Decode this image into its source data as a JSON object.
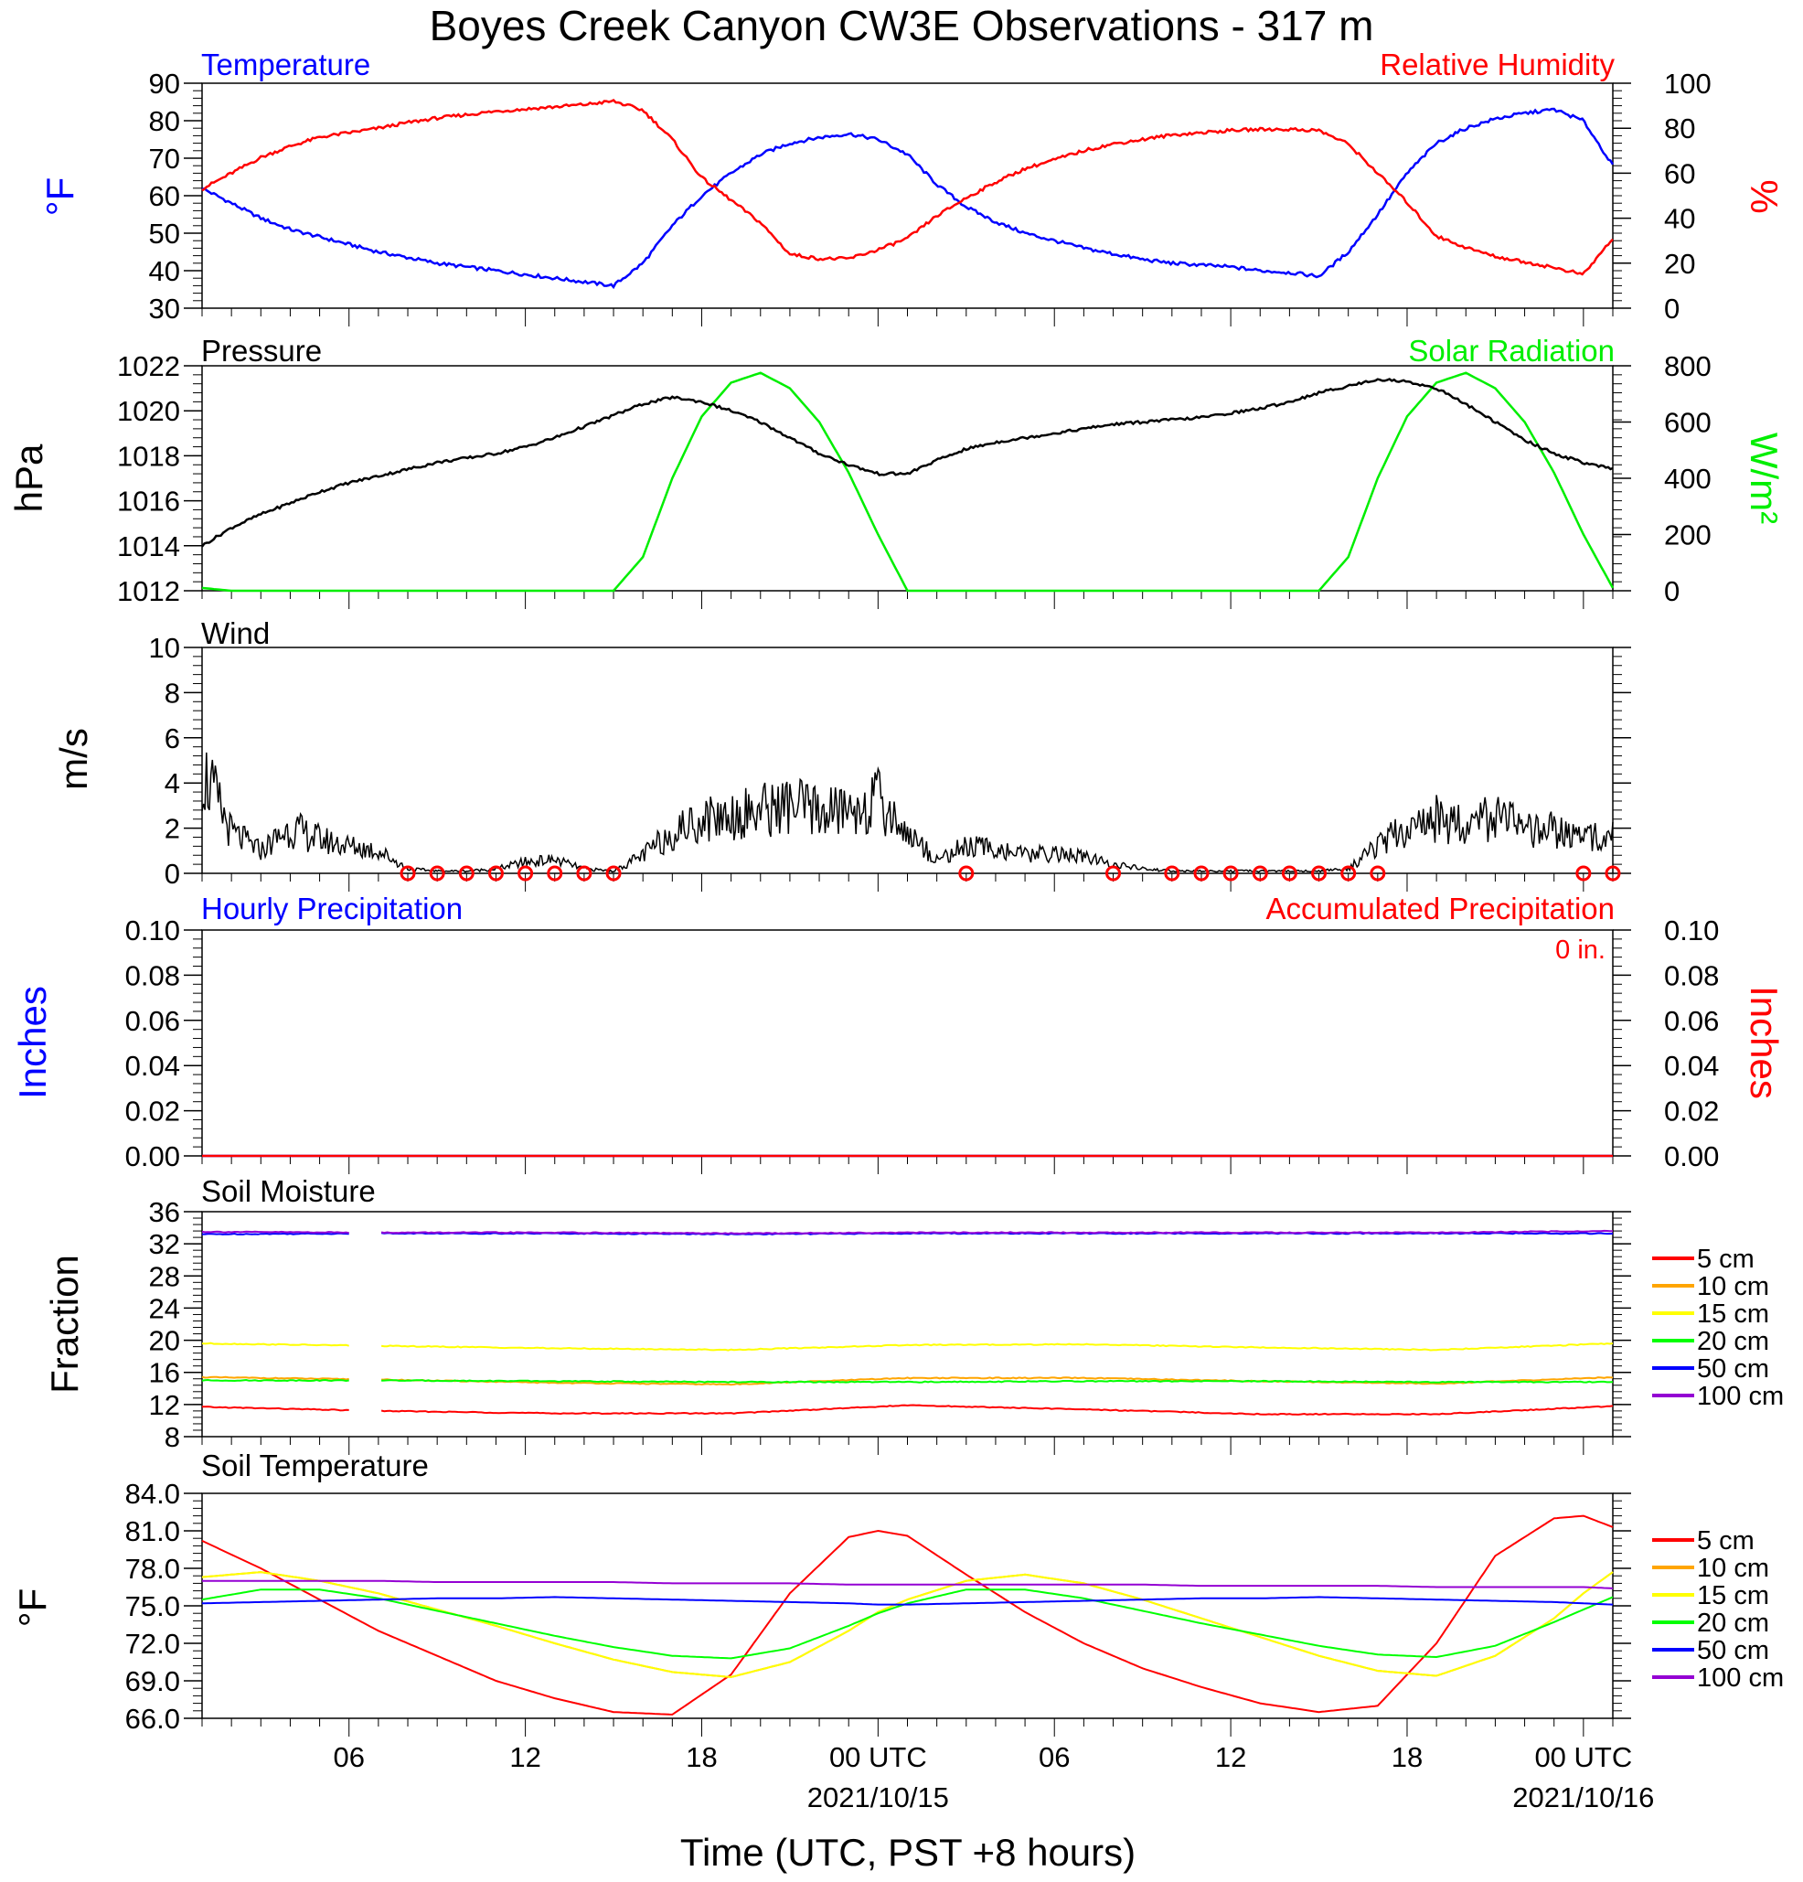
{
  "title": "Boyes Creek Canyon CW3E Observations - 317 m",
  "xaxis": {
    "label": "Time (UTC, PST +8 hours)",
    "start_hour": 1,
    "end_hour": 49,
    "ticks": [
      {
        "hour": 6,
        "label": "06",
        "date": ""
      },
      {
        "hour": 12,
        "label": "12",
        "date": ""
      },
      {
        "hour": 18,
        "label": "18",
        "date": ""
      },
      {
        "hour": 24,
        "label": "00 UTC",
        "date": "2021/10/15"
      },
      {
        "hour": 30,
        "label": "06",
        "date": ""
      },
      {
        "hour": 36,
        "label": "12",
        "date": ""
      },
      {
        "hour": 42,
        "label": "18",
        "date": ""
      },
      {
        "hour": 48,
        "label": "00 UTC",
        "date": "2021/10/16"
      }
    ]
  },
  "panels": {
    "temp_rh": {
      "title_left": "Temperature",
      "title_right": "Relative Humidity",
      "ylabel_left": "°F",
      "ylabel_right": "%"
    },
    "pressure_solar": {
      "title_left": "Pressure",
      "title_right": "Solar Radiation",
      "ylabel_left": "hPa",
      "ylabel_right": "W/m²"
    },
    "wind": {
      "title_left": "Wind",
      "ylabel_left": "m/s"
    },
    "precip": {
      "title_left": "Hourly Precipitation",
      "title_right": "Accumulated Precipitation",
      "annotation": "0 in.",
      "ylabel_left": "Inches",
      "ylabel_right": "Inches"
    },
    "soil_moisture": {
      "title_left": "Soil Moisture",
      "ylabel_left": "Fraction"
    },
    "soil_temp": {
      "title_left": "Soil Temperature",
      "ylabel_left": "°F"
    }
  },
  "colors": {
    "temperature": "#0000ff",
    "humidity": "#ff0000",
    "pressure": "#000000",
    "solar": "#00ee00",
    "wind": "#000000",
    "wind_barb": "#ff0000"
  },
  "chart_data": [
    {
      "type": "line",
      "title": "Temperature / Relative Humidity",
      "y_left_ticks": [
        30,
        40,
        50,
        60,
        70,
        80,
        90
      ],
      "y_right_ticks": [
        0,
        20,
        40,
        60,
        80,
        100
      ],
      "ylim_left": [
        30,
        90
      ],
      "ylim_right": [
        0,
        100
      ],
      "x": [
        1,
        2,
        3,
        4,
        5,
        6,
        7,
        8,
        9,
        10,
        11,
        12,
        13,
        14,
        15,
        16,
        17,
        18,
        19,
        20,
        21,
        22,
        23,
        24,
        25,
        26,
        27,
        28,
        29,
        30,
        31,
        32,
        33,
        34,
        35,
        36,
        37,
        38,
        39,
        40,
        41,
        42,
        43,
        44,
        45,
        46,
        47,
        48,
        49
      ],
      "series": [
        {
          "name": "Temperature",
          "axis": "left",
          "color": "#0000ff",
          "values": [
            62,
            58,
            54,
            51,
            49,
            47,
            45,
            43.5,
            42,
            41,
            40,
            39,
            38,
            37,
            36,
            42,
            52,
            60,
            66,
            71,
            74,
            75.5,
            76.5,
            75,
            71,
            63,
            57,
            53,
            50,
            48,
            46,
            44.5,
            43,
            42,
            41.5,
            41,
            40,
            39.5,
            38.5,
            45,
            55,
            66,
            74,
            78,
            80.5,
            82,
            83,
            80,
            68
          ]
        },
        {
          "name": "Relative Humidity",
          "axis": "right",
          "color": "#ff0000",
          "values": [
            53,
            60,
            67,
            72,
            76,
            78,
            80,
            82.5,
            84.5,
            86,
            87.5,
            88.5,
            89.5,
            90.5,
            92,
            88,
            75,
            58,
            48,
            38,
            24,
            22,
            22,
            26,
            31,
            41,
            49,
            56,
            62,
            66,
            70,
            73,
            75,
            77,
            78,
            79,
            79.5,
            79.5,
            79,
            73,
            60,
            47,
            32,
            27,
            23,
            20.5,
            18,
            15,
            31
          ]
        }
      ]
    },
    {
      "type": "line",
      "title": "Pressure / Solar Radiation",
      "y_left_ticks": [
        1012,
        1014,
        1016,
        1018,
        1020,
        1022
      ],
      "y_right_ticks": [
        0,
        200,
        400,
        600,
        800
      ],
      "ylim_left": [
        1012,
        1022
      ],
      "ylim_right": [
        0,
        800
      ],
      "x": [
        1,
        2,
        3,
        4,
        5,
        6,
        7,
        8,
        9,
        10,
        11,
        12,
        13,
        14,
        15,
        16,
        17,
        18,
        19,
        20,
        21,
        22,
        23,
        24,
        25,
        26,
        27,
        28,
        29,
        30,
        31,
        32,
        33,
        34,
        35,
        36,
        37,
        38,
        39,
        40,
        41,
        42,
        43,
        44,
        45,
        46,
        47,
        48,
        49
      ],
      "series": [
        {
          "name": "Pressure",
          "axis": "left",
          "color": "#000000",
          "values": [
            1014.0,
            1014.8,
            1015.4,
            1015.9,
            1016.4,
            1016.8,
            1017.1,
            1017.4,
            1017.7,
            1017.9,
            1018.1,
            1018.4,
            1018.8,
            1019.3,
            1019.8,
            1020.3,
            1020.6,
            1020.4,
            1020.0,
            1019.5,
            1018.8,
            1018.1,
            1017.6,
            1017.2,
            1017.2,
            1017.8,
            1018.3,
            1018.6,
            1018.8,
            1019.0,
            1019.2,
            1019.4,
            1019.5,
            1019.6,
            1019.7,
            1019.9,
            1020.1,
            1020.4,
            1020.8,
            1021.1,
            1021.4,
            1021.3,
            1021.0,
            1020.3,
            1019.5,
            1018.7,
            1018.1,
            1017.7,
            1017.4
          ]
        },
        {
          "name": "Solar Radiation",
          "axis": "right",
          "color": "#00ee00",
          "values": [
            10,
            0,
            0,
            0,
            0,
            0,
            0,
            0,
            0,
            0,
            0,
            0,
            0,
            0,
            0,
            120,
            400,
            620,
            740,
            775,
            720,
            600,
            420,
            200,
            0,
            0,
            0,
            0,
            0,
            0,
            0,
            0,
            0,
            0,
            0,
            0,
            0,
            0,
            0,
            120,
            400,
            620,
            740,
            775,
            720,
            600,
            420,
            200,
            10
          ]
        }
      ]
    },
    {
      "type": "line",
      "title": "Wind",
      "y_left_ticks": [
        0,
        2,
        4,
        6,
        8,
        10
      ],
      "ylim": [
        0,
        10
      ],
      "x": [
        1,
        2,
        3,
        4,
        5,
        6,
        7,
        8,
        9,
        10,
        11,
        12,
        13,
        14,
        15,
        16,
        17,
        18,
        19,
        20,
        21,
        22,
        23,
        24,
        25,
        26,
        27,
        28,
        29,
        30,
        31,
        32,
        33,
        34,
        35,
        36,
        37,
        38,
        39,
        40,
        41,
        42,
        43,
        44,
        45,
        46,
        47,
        48,
        49
      ],
      "series": [
        {
          "name": "Wind Speed",
          "color": "#000000",
          "values": [
            4.6,
            1.8,
            1.0,
            2.0,
            1.5,
            1.2,
            1.0,
            0.2,
            0.1,
            0.1,
            0.2,
            0.5,
            0.6,
            0.2,
            0.1,
            0.8,
            1.8,
            2.4,
            2.6,
            2.8,
            3.0,
            2.7,
            2.8,
            3.2,
            1.8,
            0.6,
            1.2,
            1.1,
            0.8,
            0.9,
            0.7,
            0.4,
            0.2,
            0.1,
            0.1,
            0.1,
            0.1,
            0.1,
            0.1,
            0.2,
            1.2,
            2.0,
            2.4,
            2.2,
            2.6,
            1.8,
            1.9,
            1.5,
            2.0
          ]
        },
        {
          "name": "Wind Barbs",
          "color": "#ff0000",
          "calm_hours": [
            8,
            9,
            10,
            11,
            12,
            13,
            14,
            15,
            27,
            32,
            34,
            35,
            36,
            37,
            38,
            39,
            40,
            41,
            48,
            49
          ]
        }
      ]
    },
    {
      "type": "line",
      "title": "Hourly Precipitation / Accumulated Precipitation",
      "y_left_ticks": [
        0.0,
        0.02,
        0.04,
        0.06,
        0.08,
        0.1
      ],
      "y_right_ticks": [
        0.0,
        0.02,
        0.04,
        0.06,
        0.08,
        0.1
      ],
      "ylim": [
        0,
        0.1
      ],
      "x": [
        1,
        49
      ],
      "series": [
        {
          "name": "Hourly Precipitation",
          "color": "#0000ff",
          "values": [
            0,
            0
          ]
        },
        {
          "name": "Accumulated Precipitation",
          "color": "#ff0000",
          "values": [
            0,
            0
          ]
        }
      ]
    },
    {
      "type": "line",
      "title": "Soil Moisture",
      "y_left_ticks": [
        8,
        12,
        16,
        20,
        24,
        28,
        32,
        36
      ],
      "ylim": [
        8,
        36
      ],
      "x": [
        1,
        7,
        13,
        19,
        25,
        31,
        37,
        43,
        49
      ],
      "gap_hours": [
        6,
        7
      ],
      "series": [
        {
          "name": "5 cm",
          "color": "#ff0000",
          "values": [
            11.7,
            11.2,
            10.9,
            10.9,
            11.9,
            11.4,
            10.8,
            10.8,
            11.8
          ]
        },
        {
          "name": "10 cm",
          "color": "#ffa500",
          "values": [
            15.4,
            15.1,
            14.7,
            14.5,
            15.3,
            15.3,
            14.9,
            14.6,
            15.4
          ]
        },
        {
          "name": "15 cm",
          "color": "#ffff00",
          "values": [
            19.6,
            19.3,
            19.0,
            18.8,
            19.4,
            19.5,
            19.1,
            18.8,
            19.6
          ]
        },
        {
          "name": "20 cm",
          "color": "#00ff00",
          "values": [
            15.0,
            15.0,
            14.9,
            14.8,
            14.8,
            14.9,
            14.9,
            14.8,
            14.8
          ]
        },
        {
          "name": "50 cm",
          "color": "#0000ff",
          "values": [
            33.2,
            33.3,
            33.3,
            33.2,
            33.3,
            33.3,
            33.3,
            33.3,
            33.3
          ]
        },
        {
          "name": "100 cm",
          "color": "#9400d3",
          "values": [
            33.5,
            33.4,
            33.4,
            33.3,
            33.4,
            33.4,
            33.4,
            33.4,
            33.6
          ]
        }
      ]
    },
    {
      "type": "line",
      "title": "Soil Temperature",
      "y_left_ticks": [
        66.0,
        69.0,
        72.0,
        75.0,
        78.0,
        81.0,
        84.0
      ],
      "ylim": [
        66,
        84
      ],
      "x": [
        1,
        3,
        5,
        7,
        9,
        11,
        13,
        15,
        17,
        19,
        21,
        23,
        24,
        25,
        27,
        29,
        31,
        33,
        35,
        37,
        39,
        41,
        43,
        45,
        47,
        48,
        49
      ],
      "series": [
        {
          "name": "5 cm",
          "color": "#ff0000",
          "values": [
            80.2,
            78.0,
            75.5,
            73.0,
            71.0,
            69.0,
            67.6,
            66.5,
            66.3,
            69.5,
            76.0,
            80.5,
            81.0,
            80.6,
            77.5,
            74.5,
            72.0,
            70.0,
            68.5,
            67.2,
            66.5,
            67.0,
            72.0,
            79.0,
            82.0,
            82.2,
            81.3
          ]
        },
        {
          "name": "10 cm",
          "color": "#ffa500",
          "values": [
            77.3,
            77.7,
            77.0,
            76.0,
            74.7,
            73.4,
            72.0,
            70.7,
            69.7,
            69.3,
            70.5,
            73.0,
            74.5,
            75.5,
            77.0,
            77.5,
            76.8,
            75.5,
            74.0,
            72.5,
            71.0,
            69.8,
            69.4,
            71.0,
            74.0,
            76.0,
            77.7
          ]
        },
        {
          "name": "15 cm",
          "color": "#ffff00",
          "values": [
            77.3,
            77.7,
            77.0,
            76.0,
            74.7,
            73.4,
            72.0,
            70.7,
            69.7,
            69.3,
            70.5,
            73.0,
            74.5,
            75.5,
            77.0,
            77.5,
            76.8,
            75.5,
            74.0,
            72.5,
            71.0,
            69.8,
            69.4,
            71.0,
            74.0,
            76.0,
            77.7
          ]
        },
        {
          "name": "20 cm",
          "color": "#00ff00",
          "values": [
            75.5,
            76.3,
            76.3,
            75.6,
            74.6,
            73.6,
            72.6,
            71.7,
            71.0,
            70.8,
            71.6,
            73.4,
            74.4,
            75.2,
            76.3,
            76.3,
            75.6,
            74.6,
            73.6,
            72.7,
            71.8,
            71.1,
            70.9,
            71.8,
            73.7,
            74.7,
            75.7
          ]
        },
        {
          "name": "50 cm",
          "color": "#0000ff",
          "values": [
            75.2,
            75.3,
            75.4,
            75.5,
            75.6,
            75.6,
            75.7,
            75.6,
            75.5,
            75.4,
            75.3,
            75.2,
            75.1,
            75.1,
            75.2,
            75.3,
            75.4,
            75.5,
            75.6,
            75.6,
            75.7,
            75.6,
            75.5,
            75.4,
            75.3,
            75.2,
            75.1
          ]
        },
        {
          "name": "100 cm",
          "color": "#9400d3",
          "values": [
            77.0,
            77.0,
            77.0,
            77.0,
            76.9,
            76.9,
            76.9,
            76.9,
            76.8,
            76.8,
            76.8,
            76.7,
            76.7,
            76.7,
            76.7,
            76.7,
            76.7,
            76.7,
            76.6,
            76.6,
            76.6,
            76.6,
            76.5,
            76.5,
            76.5,
            76.5,
            76.4
          ]
        }
      ]
    }
  ]
}
